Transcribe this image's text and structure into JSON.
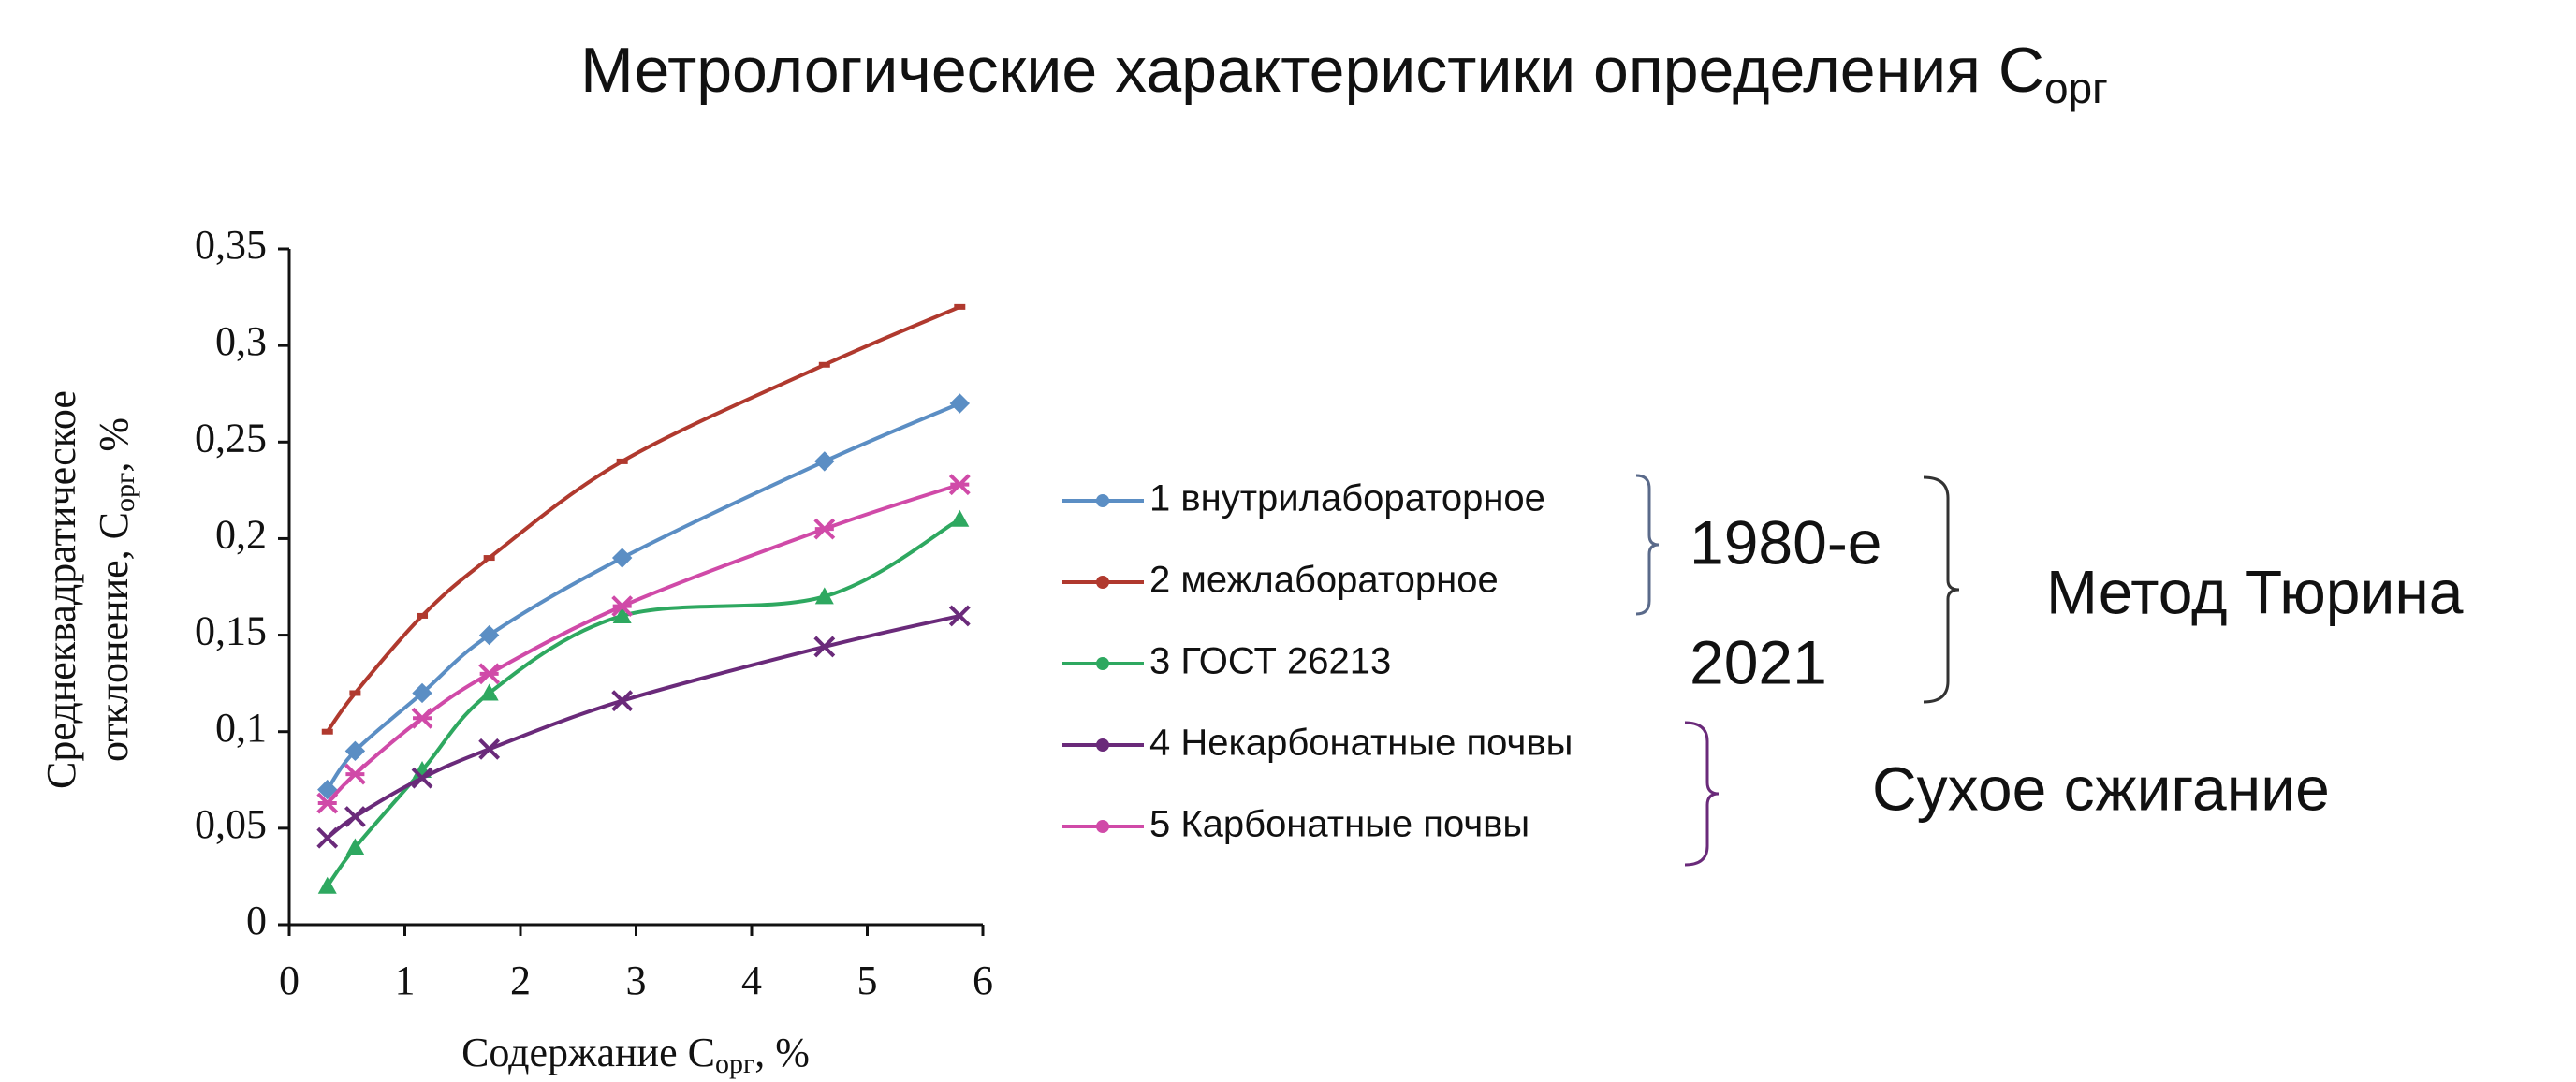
{
  "chart_data": {
    "type": "line",
    "title": {
      "text": "Метрологические характеристики определения С",
      "subscript": "орг"
    },
    "x_label": {
      "text": "Содержание С",
      "subscript": "орг",
      "suffix": ", %"
    },
    "y_label": {
      "line1": "Среднеквадратическое",
      "text": "отклонение, С",
      "subscript": "орг",
      "suffix": ", %"
    },
    "xlim": [
      0,
      6
    ],
    "xticks": [
      0,
      1,
      2,
      3,
      4,
      5,
      6
    ],
    "ylim": [
      0,
      0.35
    ],
    "yticks": [
      {
        "value": 0,
        "label": "0"
      },
      {
        "value": 0.05,
        "label": "0,05"
      },
      {
        "value": 0.1,
        "label": "0,1"
      },
      {
        "value": 0.15,
        "label": "0,15"
      },
      {
        "value": 0.2,
        "label": "0,2"
      },
      {
        "value": 0.25,
        "label": "0,25"
      },
      {
        "value": 0.3,
        "label": "0,3"
      },
      {
        "value": 0.35,
        "label": "0,35"
      }
    ],
    "x": [
      0.33,
      0.57,
      1.15,
      1.73,
      2.88,
      4.63,
      5.8
    ],
    "series": [
      {
        "name": "1  внутрилабораторное",
        "color": "#5b8ec4",
        "marker": "diamond",
        "values": [
          0.07,
          0.09,
          0.12,
          0.15,
          0.19,
          0.24,
          0.27
        ]
      },
      {
        "name": "2 межлабораторное",
        "color": "#b0392e",
        "marker": "dash",
        "values": [
          0.1,
          0.12,
          0.16,
          0.19,
          0.24,
          0.29,
          0.32
        ]
      },
      {
        "name": "3  ГОСТ 26213",
        "color": "#2ea860",
        "marker": "triangle",
        "values": [
          0.02,
          0.04,
          0.08,
          0.12,
          0.16,
          0.17,
          0.21
        ]
      },
      {
        "name": "4  Некарбонатные почвы",
        "color": "#6a2a7a",
        "marker": "x",
        "values": [
          0.045,
          0.056,
          0.076,
          0.091,
          0.116,
          0.144,
          0.16
        ]
      },
      {
        "name": "5 Карбонатные почвы",
        "color": "#d04aa8",
        "marker": "star",
        "values": [
          0.063,
          0.078,
          0.107,
          0.13,
          0.165,
          0.205,
          0.228
        ]
      }
    ],
    "annotations": [
      "1980-е",
      "2021",
      "Метод Тюрина",
      "Сухое сжигание"
    ]
  }
}
